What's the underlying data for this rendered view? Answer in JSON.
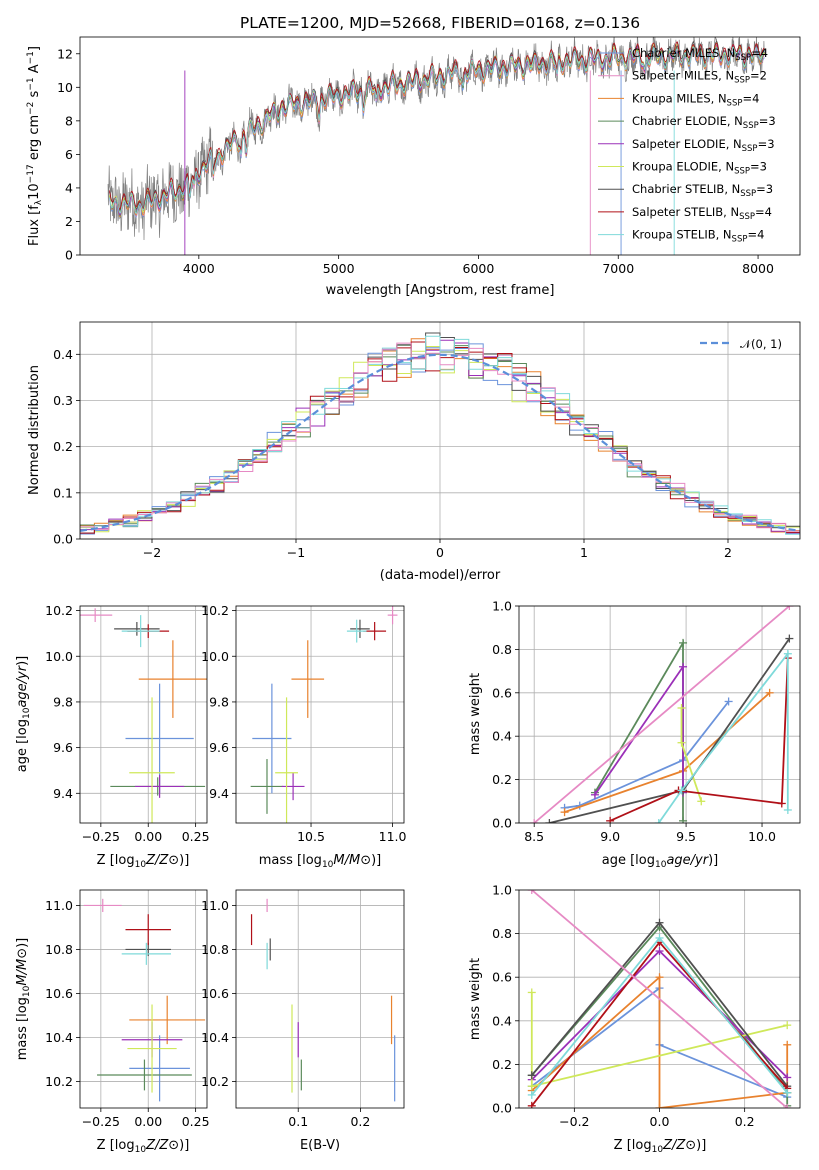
{
  "colors": [
    "#6b93db",
    "#e8822e",
    "#5b8a5b",
    "#9b30b8",
    "#cfe85a",
    "#505050",
    "#b01018",
    "#7fdada",
    "#e68ac4"
  ],
  "chart_data": [
    {
      "id": "spectrum",
      "type": "line",
      "title": "PLATE=1200, MJD=52668, FIBERID=0168, z=0.136",
      "xlabel": "wavelength [Angstrom, rest frame]",
      "ylabel": "Flux [f_λ 10^-17 erg cm^-2 s^-1 A^-1]",
      "xlim": [
        3150,
        8300
      ],
      "ylim": [
        0,
        13
      ],
      "xticks": [
        "4000",
        "5000",
        "6000",
        "7000",
        "8000"
      ],
      "yticks": [
        "0",
        "2",
        "4",
        "6",
        "8",
        "10",
        "12"
      ],
      "grid": false,
      "legend_position": "right",
      "legend": [
        {
          "name": "Chabrier MILES",
          "nssp": "4",
          "color": "#6b93db"
        },
        {
          "name": "Salpeter MILES",
          "nssp": "2",
          "color": "#e68ac4"
        },
        {
          "name": "Kroupa MILES",
          "nssp": "4",
          "color": "#e8822e"
        },
        {
          "name": "Chabrier ELODIE",
          "nssp": "3",
          "color": "#5b8a5b"
        },
        {
          "name": "Salpeter ELODIE",
          "nssp": "3",
          "color": "#9b30b8"
        },
        {
          "name": "Kroupa ELODIE",
          "nssp": "3",
          "color": "#cfe85a"
        },
        {
          "name": "Chabrier STELIB",
          "nssp": "3",
          "color": "#505050"
        },
        {
          "name": "Salpeter STELIB",
          "nssp": "4",
          "color": "#b01018"
        },
        {
          "name": "Kroupa STELIB",
          "nssp": "4",
          "color": "#7fdada"
        }
      ],
      "data_range": [
        3350,
        8050
      ],
      "continuum": [
        [
          3350,
          3.1
        ],
        [
          3600,
          3.0
        ],
        [
          3900,
          4.0
        ],
        [
          4000,
          5.0
        ],
        [
          4300,
          7.0
        ],
        [
          4600,
          8.8
        ],
        [
          5000,
          9.5
        ],
        [
          5400,
          10.1
        ],
        [
          5800,
          10.8
        ],
        [
          6200,
          11.2
        ],
        [
          6700,
          11.6
        ],
        [
          7200,
          11.8
        ],
        [
          7600,
          11.9
        ],
        [
          8050,
          11.9
        ]
      ]
    },
    {
      "id": "residuals",
      "type": "histogram",
      "xlabel": "(data-model)/error",
      "ylabel": "Normed distribution",
      "xlim": [
        -2.5,
        2.5
      ],
      "ylim": [
        0,
        0.47
      ],
      "xticks": [
        "−2",
        "−1",
        "0",
        "1",
        "2"
      ],
      "yticks": [
        "0.0",
        "0.1",
        "0.2",
        "0.3",
        "0.4"
      ],
      "grid": true,
      "legend_position": "top-right",
      "reference_curve": {
        "label": "𝒩(0, 1)",
        "mean": 0,
        "sigma": 1,
        "color": "#5b8fd9"
      },
      "bin_width": 0.1
    },
    {
      "id": "age-vs-Z",
      "type": "errorbar",
      "xlabel": "Z [log10(Z/Z⊙)]",
      "ylabel": "age [log10(age/yr)]",
      "xlim": [
        -0.36,
        0.31
      ],
      "ylim": [
        9.27,
        10.22
      ],
      "xticks": [
        {
          "v": -0.25,
          "l": "−0.25"
        },
        {
          "v": 0.0,
          "l": "0.00"
        },
        {
          "v": 0.25,
          "l": "0.25"
        }
      ],
      "yticks": [
        {
          "v": 9.4,
          "l": "9.4"
        },
        {
          "v": 9.6,
          "l": "9.6"
        },
        {
          "v": 9.8,
          "l": "9.8"
        },
        {
          "v": 10.0,
          "l": "10.0"
        },
        {
          "v": 10.2,
          "l": "10.2"
        }
      ],
      "grid": true,
      "points": [
        {
          "c": 0,
          "x": 0.06,
          "y": 9.64,
          "ex": 0.18,
          "ey": 0.24
        },
        {
          "c": 1,
          "x": 0.13,
          "y": 9.9,
          "ex": 0.18,
          "ey": 0.17
        },
        {
          "c": 2,
          "x": 0.05,
          "y": 9.43,
          "ex": 0.25,
          "ey": 0.04
        },
        {
          "c": 3,
          "x": 0.06,
          "y": 9.43,
          "ex": 0.13,
          "ey": 0.05
        },
        {
          "c": 4,
          "x": 0.02,
          "y": 9.49,
          "ex": 0.12,
          "ey": 0.33
        },
        {
          "c": 5,
          "x": -0.06,
          "y": 10.12,
          "ex": 0.12,
          "ey": 0.03
        },
        {
          "c": 6,
          "x": 0.0,
          "y": 10.11,
          "ex": 0.11,
          "ey": 0.03
        },
        {
          "c": 7,
          "x": -0.04,
          "y": 10.11,
          "ex": 0.1,
          "ey": 0.07
        },
        {
          "c": 8,
          "x": -0.28,
          "y": 10.18,
          "ex": 0.09,
          "ey": 0.03
        }
      ]
    },
    {
      "id": "age-vs-mass",
      "type": "errorbar",
      "xlabel": "mass [log10(M/M⊙)]",
      "ylabel": "",
      "xlim": [
        10.04,
        11.07
      ],
      "ylim": [
        9.27,
        10.22
      ],
      "xticks": [
        {
          "v": 10.5,
          "l": "10.5"
        },
        {
          "v": 11.0,
          "l": "11.0"
        }
      ],
      "yticks": [
        {
          "v": 9.4,
          "l": "9.4"
        },
        {
          "v": 9.6,
          "l": "9.6"
        },
        {
          "v": 9.8,
          "l": "9.8"
        },
        {
          "v": 10.0,
          "l": "10.0"
        },
        {
          "v": 10.2,
          "l": "10.2"
        }
      ],
      "grid": true,
      "points": [
        {
          "c": 0,
          "x": 10.26,
          "y": 9.64,
          "ex": 0.12,
          "ey": 0.24
        },
        {
          "c": 1,
          "x": 10.48,
          "y": 9.9,
          "ex": 0.1,
          "ey": 0.17
        },
        {
          "c": 2,
          "x": 10.23,
          "y": 9.43,
          "ex": 0.1,
          "ey": 0.12
        },
        {
          "c": 3,
          "x": 10.39,
          "y": 9.43,
          "ex": 0.07,
          "ey": 0.06
        },
        {
          "c": 4,
          "x": 10.35,
          "y": 9.49,
          "ex": 0.07,
          "ey": 0.33
        },
        {
          "c": 5,
          "x": 10.8,
          "y": 10.12,
          "ex": 0.06,
          "ey": 0.04
        },
        {
          "c": 6,
          "x": 10.89,
          "y": 10.11,
          "ex": 0.07,
          "ey": 0.04
        },
        {
          "c": 7,
          "x": 10.78,
          "y": 10.11,
          "ex": 0.06,
          "ey": 0.05
        },
        {
          "c": 8,
          "x": 11.0,
          "y": 10.18,
          "ex": 0.03,
          "ey": 0.04
        }
      ]
    },
    {
      "id": "massweight-vs-age",
      "type": "line",
      "xlabel": "age [log10(age/yr)]",
      "ylabel": "mass weight",
      "xlim": [
        8.4,
        10.25
      ],
      "ylim": [
        0,
        1.0
      ],
      "xticks": [
        {
          "v": 8.5,
          "l": "8.5"
        },
        {
          "v": 9.0,
          "l": "9.0"
        },
        {
          "v": 9.5,
          "l": "9.5"
        },
        {
          "v": 10.0,
          "l": "10.0"
        }
      ],
      "yticks": [
        {
          "v": 0,
          "l": "0.0"
        },
        {
          "v": 0.2,
          "l": "0.2"
        },
        {
          "v": 0.4,
          "l": "0.4"
        },
        {
          "v": 0.6,
          "l": "0.6"
        },
        {
          "v": 0.8,
          "l": "0.8"
        },
        {
          "v": 1.0,
          "l": "1.0"
        }
      ],
      "grid": true,
      "series": [
        {
          "c": 0,
          "x": [
            8.7,
            8.8,
            9.48,
            9.78
          ],
          "y": [
            0.07,
            0.08,
            0.29,
            0.56
          ]
        },
        {
          "c": 1,
          "x": [
            8.7,
            9.48,
            10.05
          ],
          "y": [
            0.05,
            0.24,
            0.6
          ]
        },
        {
          "c": 2,
          "x": [
            8.9,
            9.48,
            9.48
          ],
          "y": [
            0.14,
            0.83,
            0.01
          ]
        },
        {
          "c": 3,
          "x": [
            8.9,
            9.48,
            9.48
          ],
          "y": [
            0.13,
            0.72,
            0.14
          ]
        },
        {
          "c": 4,
          "x": [
            9.47,
            9.47,
            9.6
          ],
          "y": [
            0.53,
            0.37,
            0.1
          ]
        },
        {
          "c": 5,
          "x": [
            8.6,
            9.48,
            10.18
          ],
          "y": [
            0.0,
            0.15,
            0.85
          ]
        },
        {
          "c": 6,
          "x": [
            9.0,
            9.45,
            10.13,
            10.17
          ],
          "y": [
            0.01,
            0.15,
            0.09,
            0.76
          ]
        },
        {
          "c": 7,
          "x": [
            9.32,
            9.47,
            10.17,
            10.17
          ],
          "y": [
            0.0,
            0.15,
            0.78,
            0.06
          ]
        },
        {
          "c": 8,
          "x": [
            8.5,
            10.18
          ],
          "y": [
            0.0,
            1.0
          ]
        }
      ]
    },
    {
      "id": "mass-vs-Z",
      "type": "errorbar",
      "xlabel": "Z [log10(Z/Z⊙)]",
      "ylabel": "mass [log10(M/M⊙)]",
      "xlim": [
        -0.36,
        0.31
      ],
      "ylim": [
        10.08,
        11.07
      ],
      "xticks": [
        {
          "v": -0.25,
          "l": "−0.25"
        },
        {
          "v": 0.0,
          "l": "0.00"
        },
        {
          "v": 0.25,
          "l": "0.25"
        }
      ],
      "yticks": [
        {
          "v": 10.2,
          "l": "10.2"
        },
        {
          "v": 10.4,
          "l": "10.4"
        },
        {
          "v": 10.6,
          "l": "10.6"
        },
        {
          "v": 10.8,
          "l": "10.8"
        },
        {
          "v": 11.0,
          "l": "11.0"
        }
      ],
      "grid": true,
      "points": [
        {
          "c": 0,
          "x": 0.06,
          "y": 10.26,
          "ex": 0.16,
          "ey": 0.15
        },
        {
          "c": 1,
          "x": 0.1,
          "y": 10.48,
          "ex": 0.2,
          "ey": 0.11
        },
        {
          "c": 2,
          "x": -0.02,
          "y": 10.23,
          "ex": 0.25,
          "ey": 0.07
        },
        {
          "c": 3,
          "x": 0.02,
          "y": 10.39,
          "ex": 0.16,
          "ey": 0.08
        },
        {
          "c": 4,
          "x": 0.02,
          "y": 10.35,
          "ex": 0.13,
          "ey": 0.2
        },
        {
          "c": 5,
          "x": 0.0,
          "y": 10.8,
          "ex": 0.12,
          "ey": 0.03
        },
        {
          "c": 6,
          "x": 0.0,
          "y": 10.89,
          "ex": 0.12,
          "ey": 0.07
        },
        {
          "c": 7,
          "x": -0.01,
          "y": 10.78,
          "ex": 0.13,
          "ey": 0.05
        },
        {
          "c": 8,
          "x": -0.24,
          "y": 11.0,
          "ex": 0.1,
          "ey": 0.03
        }
      ]
    },
    {
      "id": "mass-vs-ebv",
      "type": "errorbar",
      "xlabel": "E(B-V)",
      "ylabel": "",
      "xlim": [
        0.0,
        0.27
      ],
      "ylim": [
        10.08,
        11.07
      ],
      "xticks": [
        {
          "v": 0.1,
          "l": "0.1"
        },
        {
          "v": 0.2,
          "l": "0.2"
        }
      ],
      "yticks": [
        {
          "v": 10.2,
          "l": "10.2"
        },
        {
          "v": 10.4,
          "l": "10.4"
        },
        {
          "v": 10.6,
          "l": "10.6"
        },
        {
          "v": 10.8,
          "l": "10.8"
        },
        {
          "v": 11.0,
          "l": "11.0"
        }
      ],
      "grid": true,
      "points": [
        {
          "c": 0,
          "x": 0.255,
          "y": 10.26,
          "ex": 0.0,
          "ey": 0.15
        },
        {
          "c": 1,
          "x": 0.25,
          "y": 10.48,
          "ex": 0.0,
          "ey": 0.11
        },
        {
          "c": 2,
          "x": 0.105,
          "y": 10.23,
          "ex": 0.0,
          "ey": 0.07
        },
        {
          "c": 3,
          "x": 0.1,
          "y": 10.39,
          "ex": 0.0,
          "ey": 0.08
        },
        {
          "c": 4,
          "x": 0.09,
          "y": 10.35,
          "ex": 0.0,
          "ey": 0.2
        },
        {
          "c": 5,
          "x": 0.055,
          "y": 10.8,
          "ex": 0.0,
          "ey": 0.05
        },
        {
          "c": 6,
          "x": 0.025,
          "y": 10.89,
          "ex": 0.0,
          "ey": 0.07
        },
        {
          "c": 7,
          "x": 0.05,
          "y": 10.77,
          "ex": 0.0,
          "ey": 0.06
        },
        {
          "c": 8,
          "x": 0.05,
          "y": 11.0,
          "ex": 0.0,
          "ey": 0.03
        }
      ]
    },
    {
      "id": "massweight-vs-Z",
      "type": "line",
      "xlabel": "Z [log10(Z/Z⊙)]",
      "ylabel": "mass weight",
      "xlim": [
        -0.33,
        0.33
      ],
      "ylim": [
        0,
        1.0
      ],
      "xticks": [
        {
          "v": -0.2,
          "l": "−0.2"
        },
        {
          "v": 0.0,
          "l": "0.0"
        },
        {
          "v": 0.2,
          "l": "0.2"
        }
      ],
      "yticks": [
        {
          "v": 0,
          "l": "0.0"
        },
        {
          "v": 0.2,
          "l": "0.2"
        },
        {
          "v": 0.4,
          "l": "0.4"
        },
        {
          "v": 0.6,
          "l": "0.6"
        },
        {
          "v": 0.8,
          "l": "0.8"
        },
        {
          "v": 1.0,
          "l": "1.0"
        }
      ],
      "grid": true,
      "series": [
        {
          "c": 0,
          "x": [
            -0.3,
            0.0,
            0.0,
            0.3
          ],
          "y": [
            0.1,
            0.55,
            0.29,
            0.05
          ]
        },
        {
          "c": 1,
          "x": [
            -0.3,
            0.0,
            0.0,
            0.3,
            0.3
          ],
          "y": [
            0.08,
            0.6,
            0.0,
            0.07,
            0.29
          ]
        },
        {
          "c": 2,
          "x": [
            -0.3,
            0.0,
            0.3,
            0.3
          ],
          "y": [
            0.15,
            0.83,
            0.07,
            0.01
          ]
        },
        {
          "c": 3,
          "x": [
            -0.3,
            0.0,
            0.3
          ],
          "y": [
            0.13,
            0.72,
            0.14
          ]
        },
        {
          "c": 4,
          "x": [
            -0.3,
            -0.3,
            0.3
          ],
          "y": [
            0.53,
            0.1,
            0.38
          ]
        },
        {
          "c": 5,
          "x": [
            -0.3,
            0.0,
            0.3
          ],
          "y": [
            0.15,
            0.85,
            0.1
          ]
        },
        {
          "c": 6,
          "x": [
            -0.3,
            0.0,
            0.3
          ],
          "y": [
            0.01,
            0.76,
            0.09
          ]
        },
        {
          "c": 7,
          "x": [
            -0.3,
            0.0,
            0.3
          ],
          "y": [
            0.06,
            0.78,
            0.07
          ]
        },
        {
          "c": 8,
          "x": [
            -0.3,
            0.3
          ],
          "y": [
            1.0,
            0.0
          ]
        }
      ]
    }
  ]
}
